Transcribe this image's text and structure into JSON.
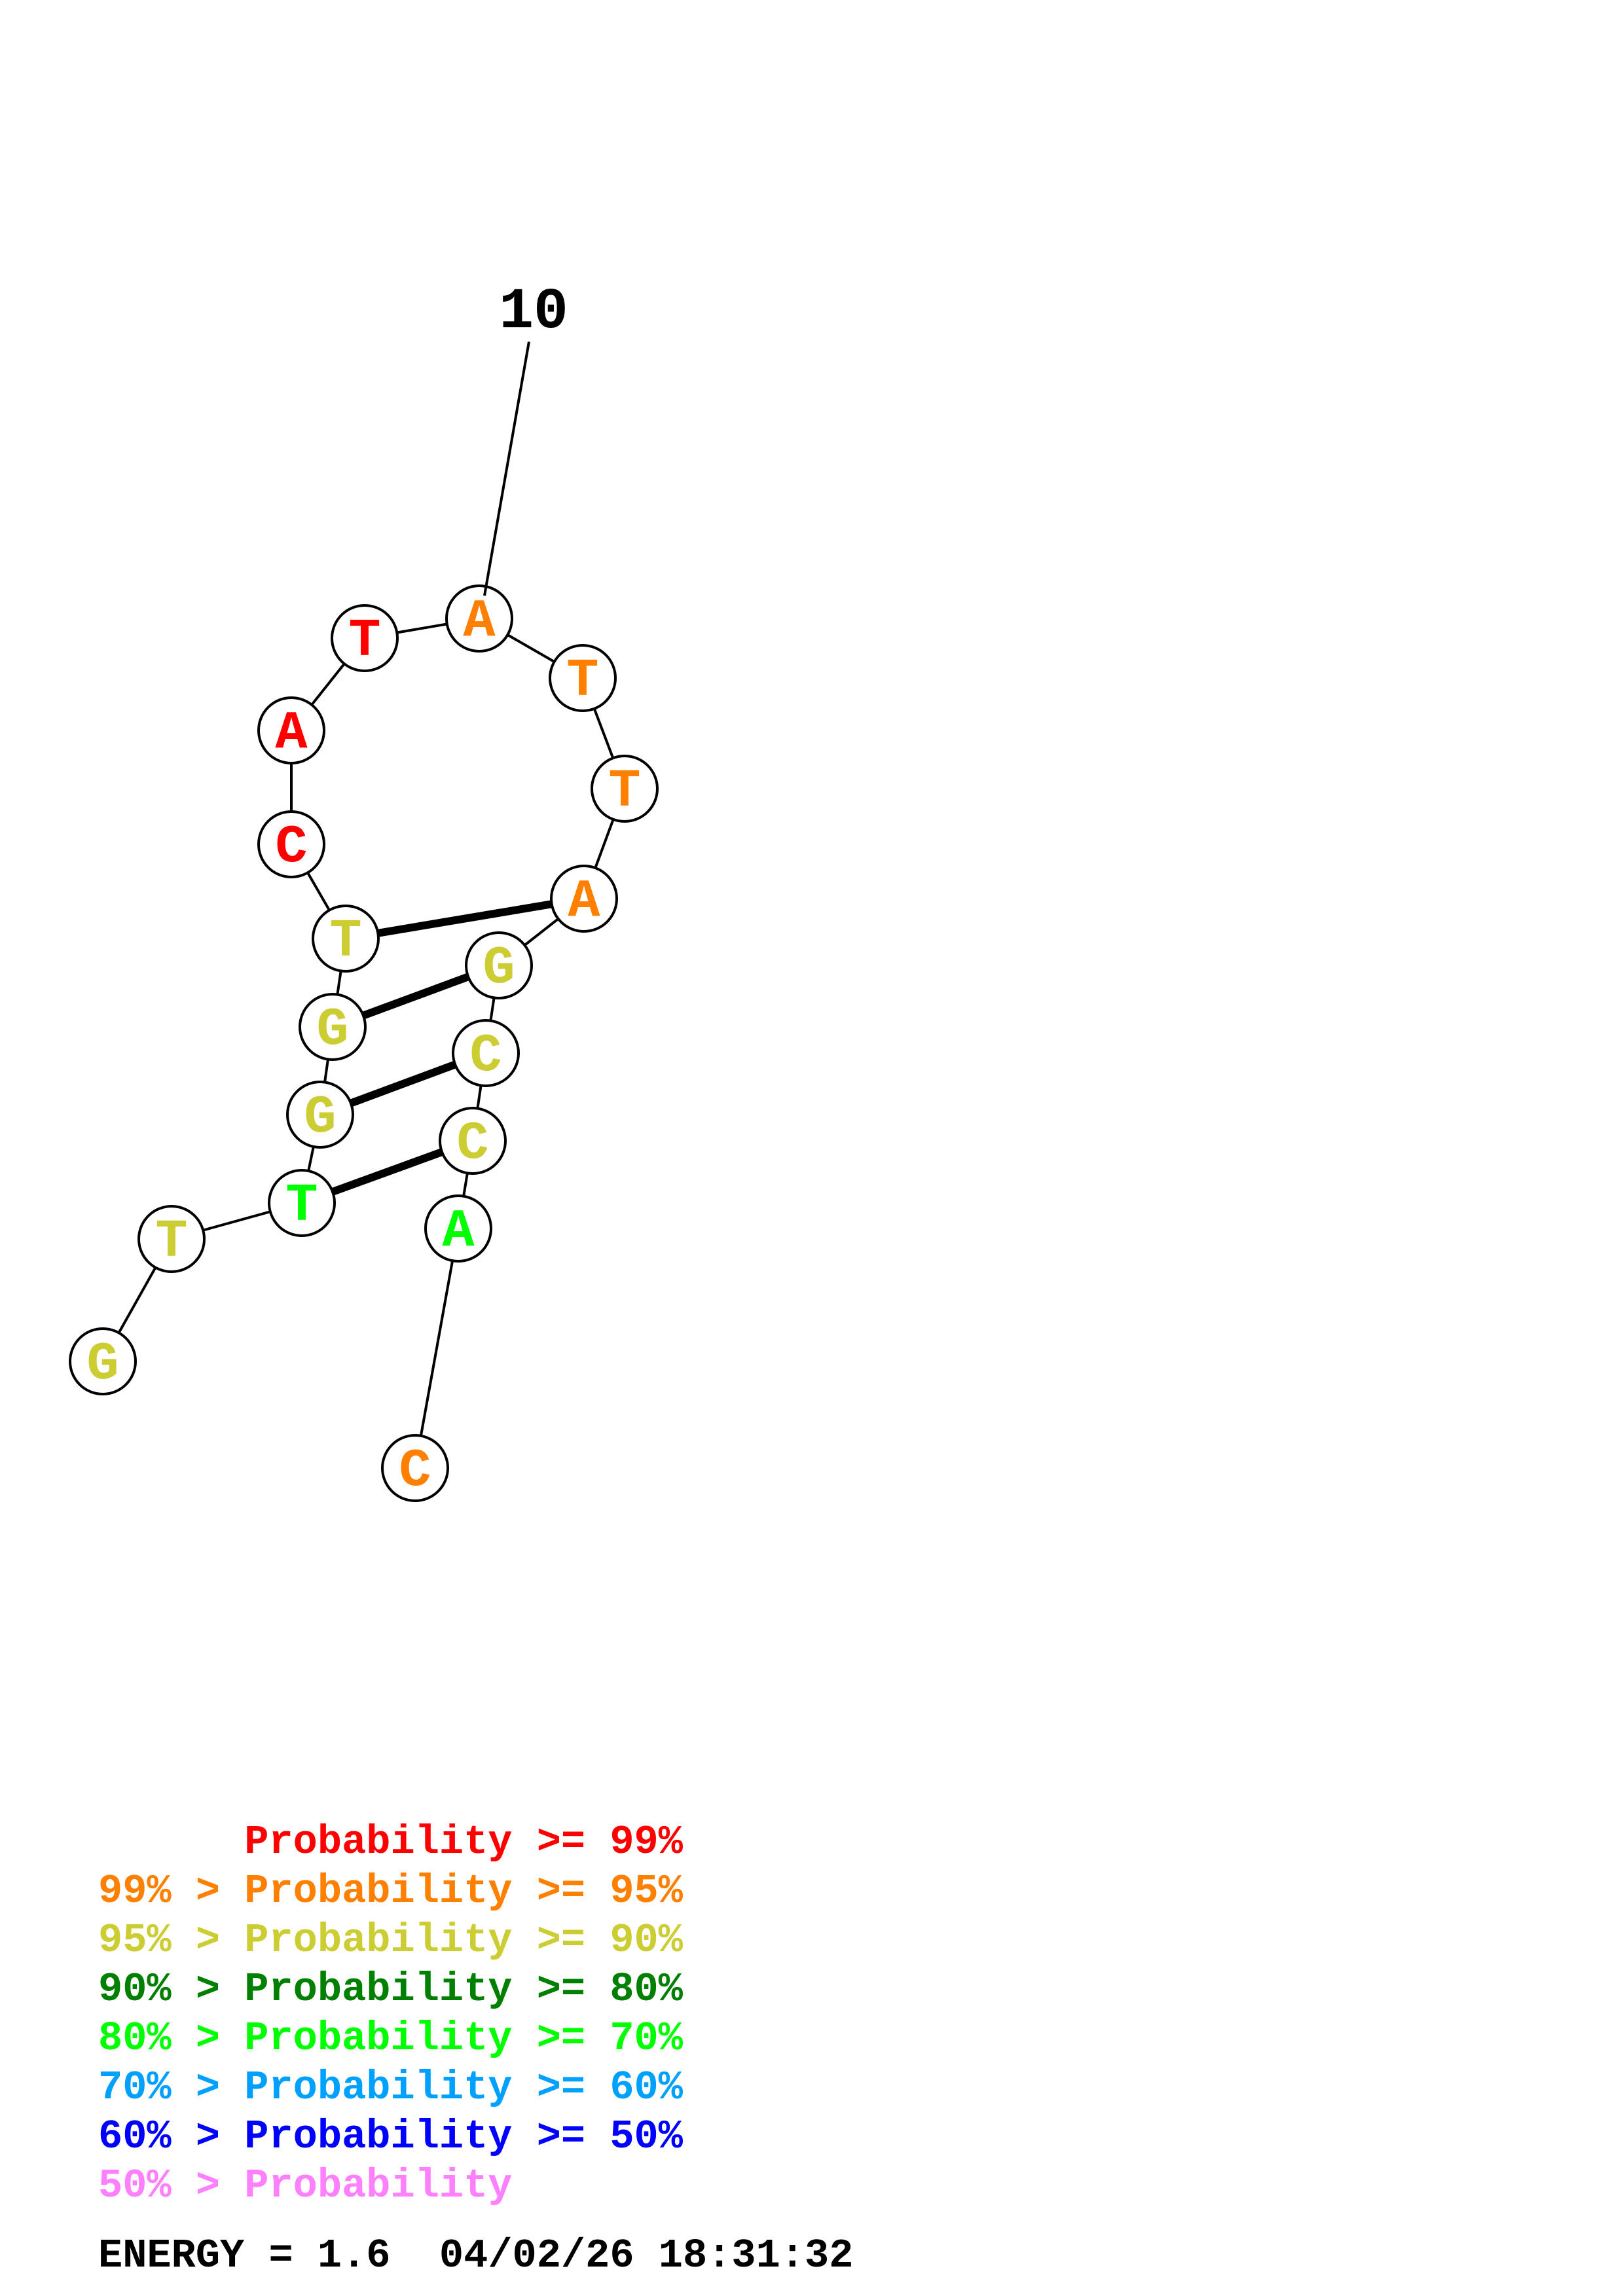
{
  "structure": {
    "position_label": "10",
    "energy_label": "ENERGY = 1.6",
    "timestamp": "04/02/26 18:31:32",
    "nucleotides": [
      {
        "letter": "G",
        "level": 2
      },
      {
        "letter": "T",
        "level": 2
      },
      {
        "letter": "T",
        "level": 4
      },
      {
        "letter": "G",
        "level": 2
      },
      {
        "letter": "G",
        "level": 2
      },
      {
        "letter": "T",
        "level": 2
      },
      {
        "letter": "C",
        "level": 0
      },
      {
        "letter": "A",
        "level": 0
      },
      {
        "letter": "T",
        "level": 0
      },
      {
        "letter": "A",
        "level": 1
      },
      {
        "letter": "T",
        "level": 1
      },
      {
        "letter": "T",
        "level": 1
      },
      {
        "letter": "A",
        "level": 1
      },
      {
        "letter": "G",
        "level": 2
      },
      {
        "letter": "C",
        "level": 2
      },
      {
        "letter": "C",
        "level": 2
      },
      {
        "letter": "A",
        "level": 4
      },
      {
        "letter": "C",
        "level": 1
      }
    ],
    "base_pairs": [
      [
        3,
        16
      ],
      [
        4,
        15
      ],
      [
        5,
        14
      ],
      [
        6,
        13
      ]
    ]
  },
  "legend": [
    {
      "prefix": "    ",
      "text": "Probability >= 99%",
      "color": "#ff0000"
    },
    {
      "prefix": "99% > ",
      "text": "Probability >= 95%",
      "color": "#ff8000"
    },
    {
      "prefix": "95% > ",
      "text": "Probability >= 90%",
      "color": "#cccc33"
    },
    {
      "prefix": "90% > ",
      "text": "Probability >= 80%",
      "color": "#008000"
    },
    {
      "prefix": "80% > ",
      "text": "Probability >= 70%",
      "color": "#00ff00"
    },
    {
      "prefix": "70% > ",
      "text": "Probability >= 60%",
      "color": "#00a0ff"
    },
    {
      "prefix": "60% > ",
      "text": "Probability >= 50%",
      "color": "#0000ff"
    },
    {
      "prefix": "50% > ",
      "text": "Probability",
      "color": "#ff80ff"
    }
  ],
  "colors": {
    "line": "#000000",
    "circle_fill": "#ffffff"
  }
}
